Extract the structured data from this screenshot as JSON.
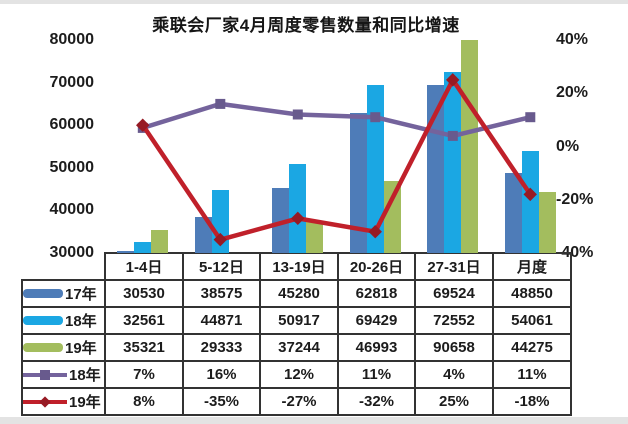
{
  "title": "乘联会厂家4月周度零售数量和同比增速",
  "colors": {
    "bar_17": "#4e7cb8",
    "bar_18": "#1ba7e3",
    "bar_19": "#a3bd5e",
    "line_18": "#74639c",
    "line_19": "#c0202a",
    "line_19_marker": "#971a24",
    "table_border": "#333333",
    "text": "#1c1c1c",
    "strip": "#e3e3e3"
  },
  "chart_data": {
    "type": "bar",
    "subtype": "grouped bars with two overlay percent lines (combo chart)",
    "title": "乘联会厂家4月周度零售数量和同比增速",
    "categories": [
      "1-4日",
      "5-12日",
      "13-19日",
      "20-26日",
      "27-31日",
      "月度"
    ],
    "bar_series": [
      {
        "name": "17年",
        "color": "#4e7cb8",
        "values": [
          30530,
          38575,
          45280,
          62818,
          69524,
          48850
        ]
      },
      {
        "name": "18年",
        "color": "#1ba7e3",
        "values": [
          32561,
          44871,
          50917,
          69429,
          72552,
          54061
        ]
      },
      {
        "name": "19年",
        "color": "#a3bd5e",
        "values": [
          35321,
          29333,
          37244,
          46993,
          90658,
          44275
        ]
      }
    ],
    "line_series": [
      {
        "name": "18年",
        "color": "#74639c",
        "marker": "square",
        "marker_color": "#685a8d",
        "values_pct": [
          7,
          16,
          12,
          11,
          4,
          11
        ]
      },
      {
        "name": "19年",
        "color": "#c0202a",
        "marker": "diamond",
        "marker_color": "#971a24",
        "values_pct": [
          8,
          -35,
          -27,
          -32,
          25,
          -18
        ]
      }
    ],
    "left_axis": {
      "min": 30000,
      "max": 80000,
      "tick_labels": [
        "80000",
        "70000",
        "60000",
        "50000",
        "40000",
        "30000"
      ]
    },
    "right_axis": {
      "min": -40,
      "max": 40,
      "tick_labels": [
        "40%",
        "20%",
        "0%",
        "-20%",
        "-40%"
      ]
    },
    "gridlines": false,
    "legend_position": "left column of attached data table",
    "table": {
      "column_headers": [
        "1-4日",
        "5-12日",
        "13-19日",
        "20-26日",
        "27-31日",
        "月度"
      ],
      "rows": [
        {
          "legend": "17年",
          "cells": [
            "30530",
            "38575",
            "45280",
            "62818",
            "69524",
            "48850"
          ]
        },
        {
          "legend": "18年",
          "cells": [
            "32561",
            "44871",
            "50917",
            "69429",
            "72552",
            "54061"
          ]
        },
        {
          "legend": "19年",
          "cells": [
            "35321",
            "29333",
            "37244",
            "46993",
            "90658",
            "44275"
          ]
        },
        {
          "legend": "18年",
          "cells": [
            "7%",
            "16%",
            "12%",
            "11%",
            "4%",
            "11%"
          ]
        },
        {
          "legend": "19年",
          "cells": [
            "8%",
            "-35%",
            "-27%",
            "-32%",
            "25%",
            "-18%"
          ]
        }
      ]
    }
  }
}
